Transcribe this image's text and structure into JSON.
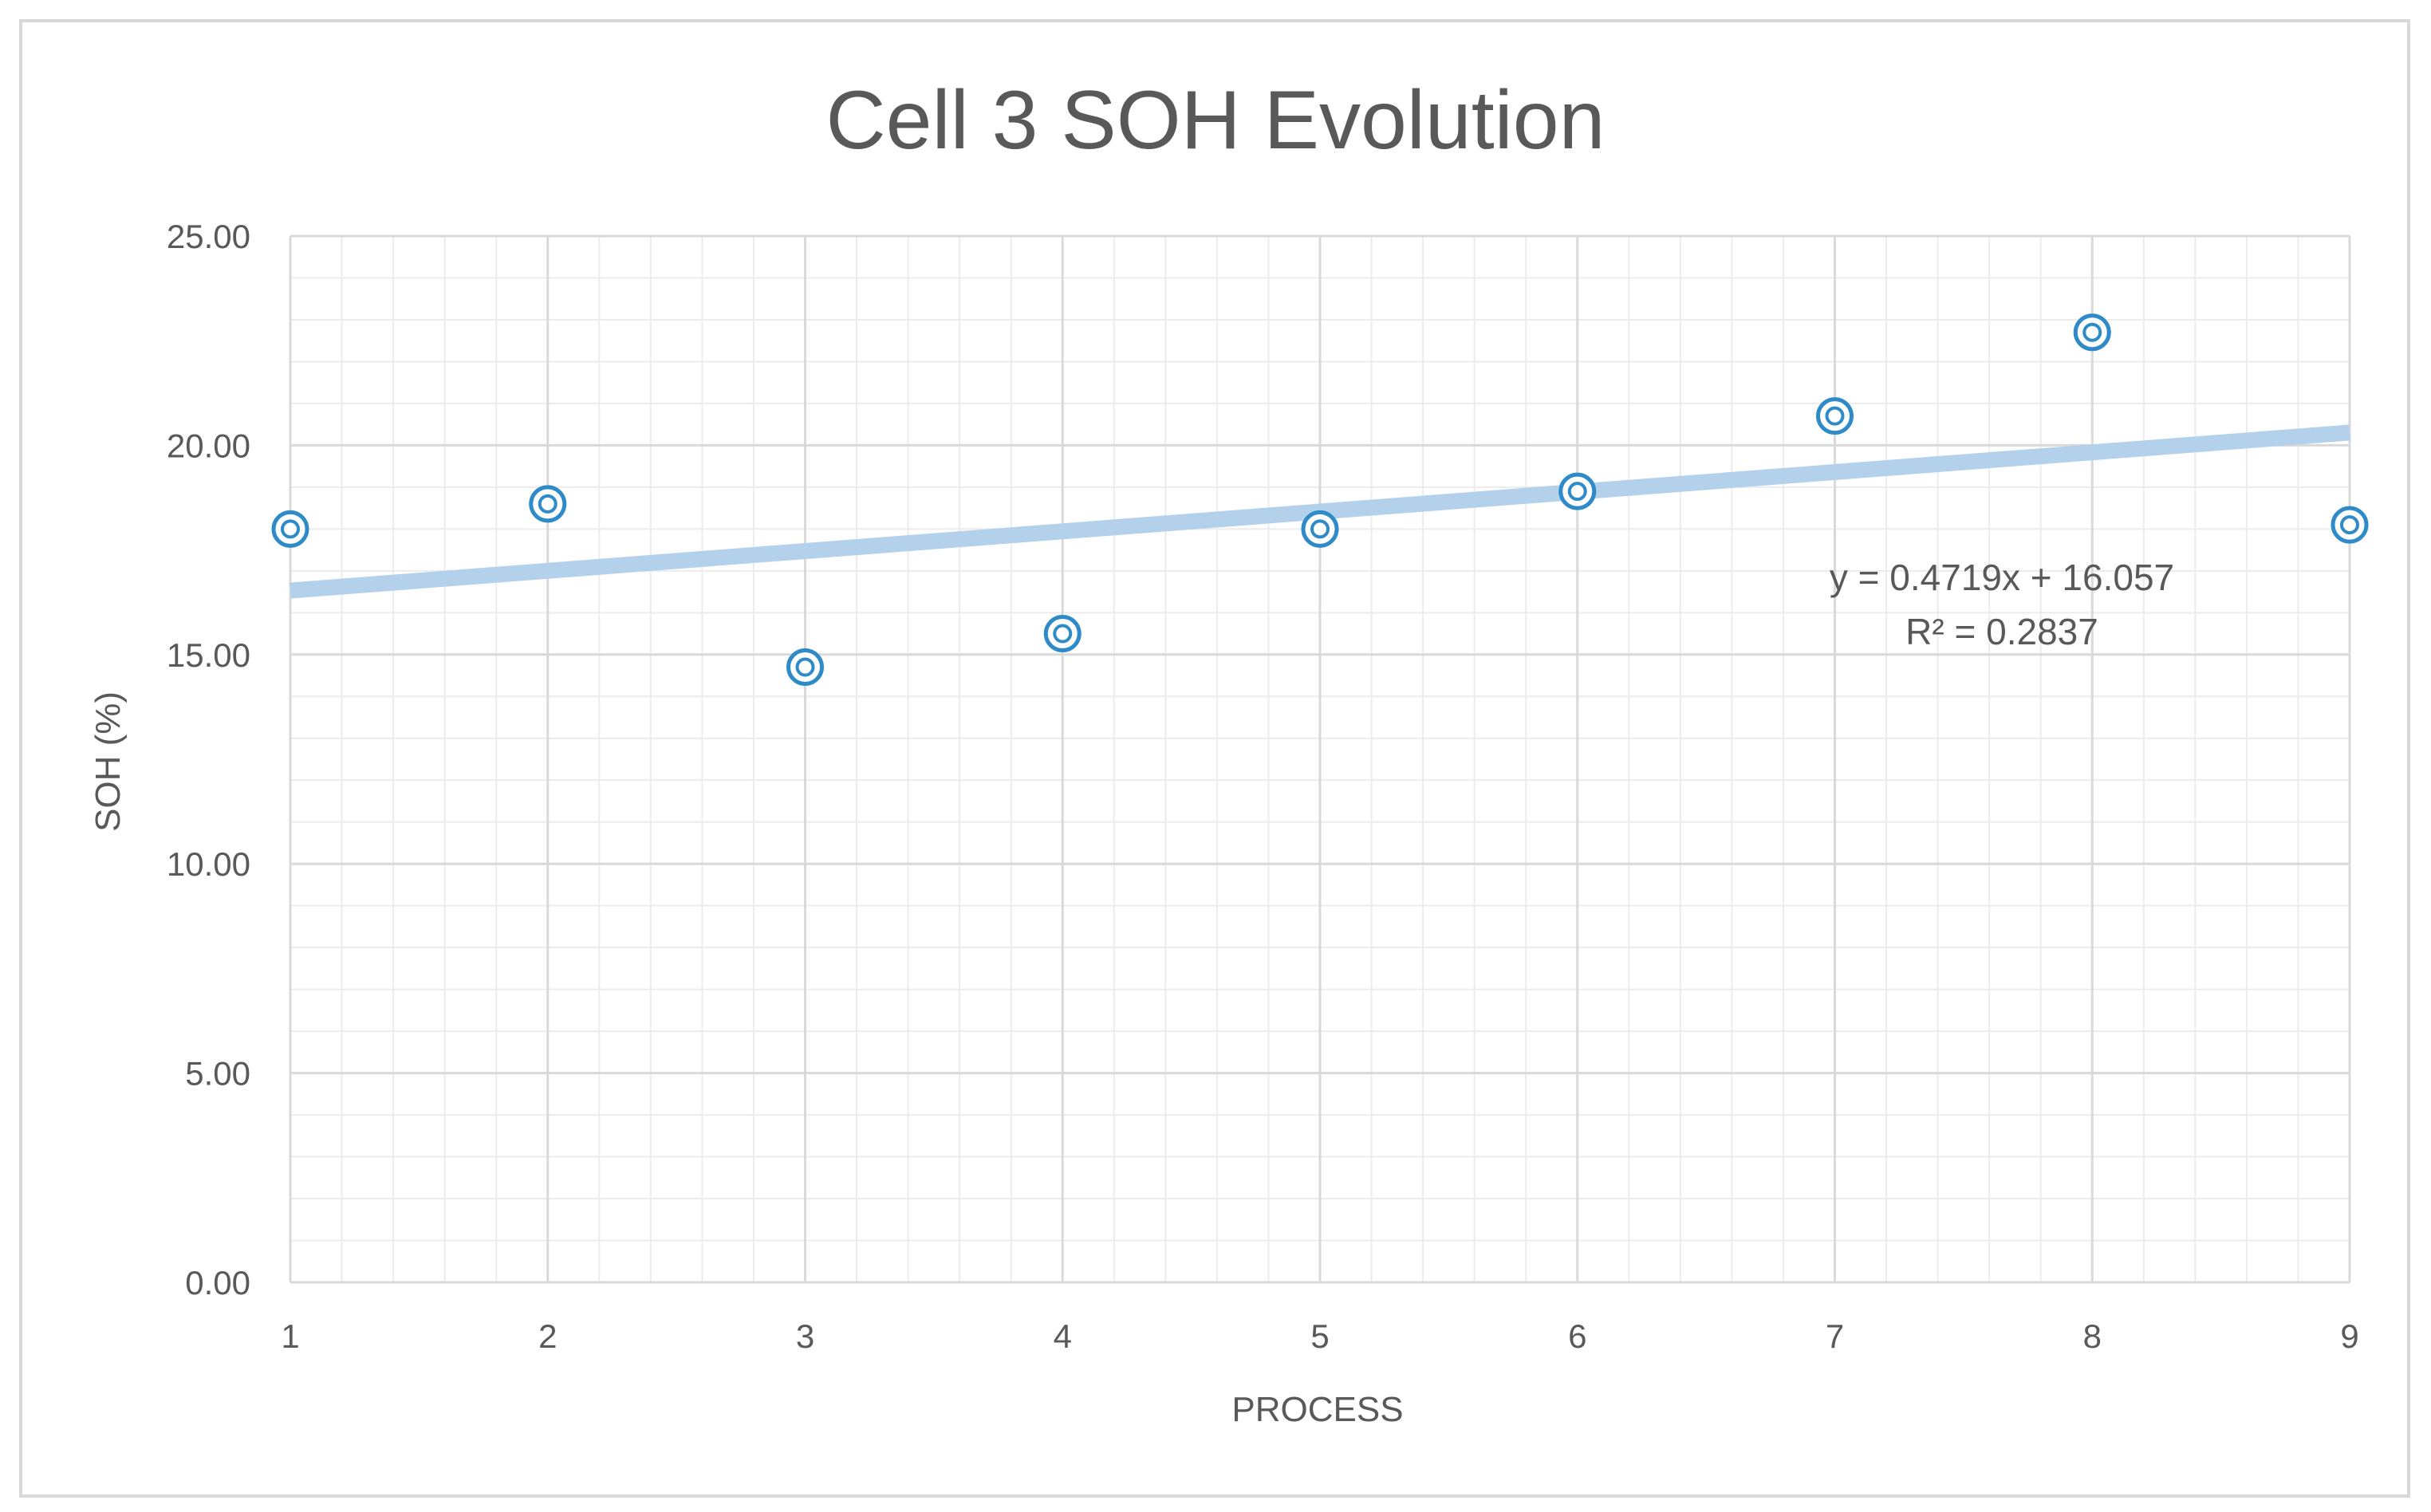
{
  "chart_data": {
    "type": "scatter",
    "title": "Cell  3 SOH Evolution",
    "xlabel": "PROCESS",
    "ylabel": "SOH (%)",
    "xlim": [
      1,
      9
    ],
    "ylim": [
      0,
      25
    ],
    "x_ticks": [
      "1",
      "2",
      "3",
      "4",
      "5",
      "6",
      "7",
      "8",
      "9"
    ],
    "y_ticks": [
      "0.00",
      "5.00",
      "10.00",
      "15.00",
      "20.00",
      "25.00"
    ],
    "grid": "major and minor",
    "series": [
      {
        "name": "SOH",
        "x": [
          1,
          2,
          3,
          4,
          5,
          6,
          7,
          8,
          9
        ],
        "y": [
          18.0,
          18.6,
          14.7,
          15.5,
          18.0,
          18.9,
          20.7,
          22.7,
          18.1
        ],
        "marker": "double-circle",
        "color": "#2e8bc8"
      }
    ],
    "trendline": {
      "type": "linear",
      "slope": 0.4719,
      "intercept": 16.057,
      "color": "#b3d1ea",
      "equation_label": "y = 0.4719x + 16.057",
      "r2_label": "R² = 0.2837"
    }
  }
}
